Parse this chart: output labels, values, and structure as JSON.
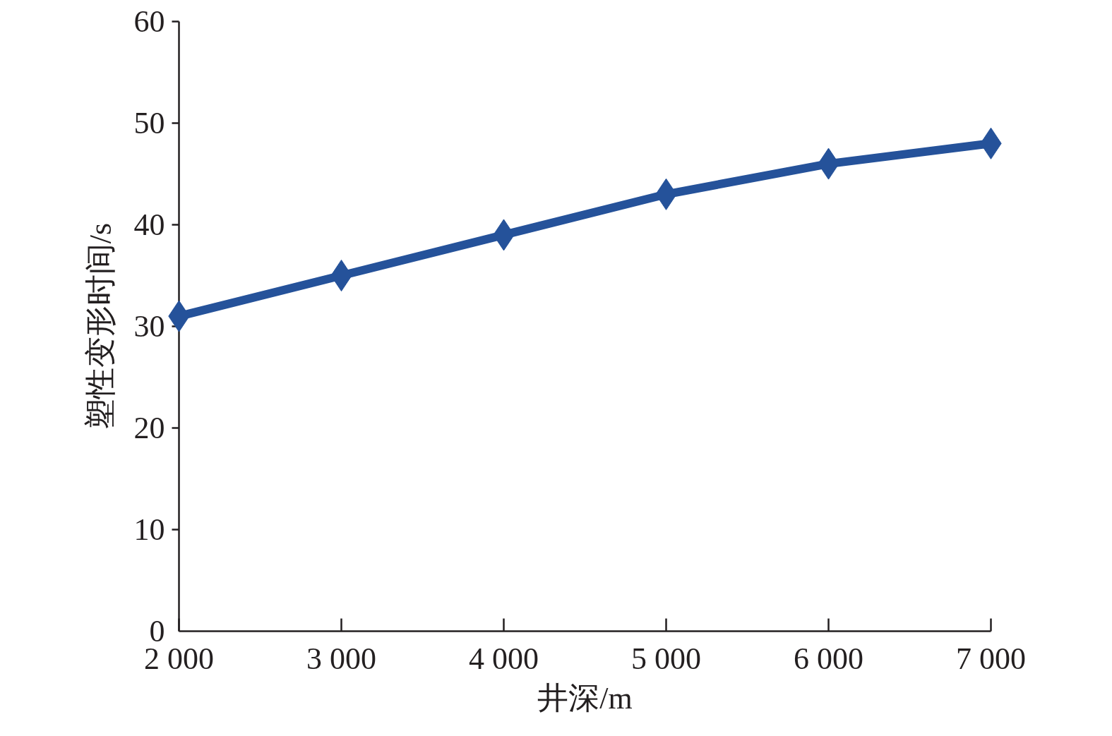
{
  "chart_data": {
    "type": "line",
    "xlabel": "井深/m",
    "ylabel": "塑性变形时间/s",
    "x": [
      2000,
      3000,
      4000,
      5000,
      6000,
      7000
    ],
    "values": [
      31,
      35,
      39,
      43,
      46,
      48
    ],
    "color": "#25529a",
    "xlim": [
      2000,
      7000
    ],
    "xticks": [
      {
        "value": 2000,
        "label": "2 000"
      },
      {
        "value": 3000,
        "label": "3 000"
      },
      {
        "value": 4000,
        "label": "4 000"
      },
      {
        "value": 5000,
        "label": "5 000"
      },
      {
        "value": 6000,
        "label": "6 000"
      },
      {
        "value": 7000,
        "label": "7 000"
      }
    ],
    "ylim": [
      0,
      60
    ],
    "yticks": [
      0,
      10,
      20,
      30,
      40,
      50,
      60
    ],
    "grid": false,
    "marker": "diamond",
    "line_style": "solid"
  }
}
